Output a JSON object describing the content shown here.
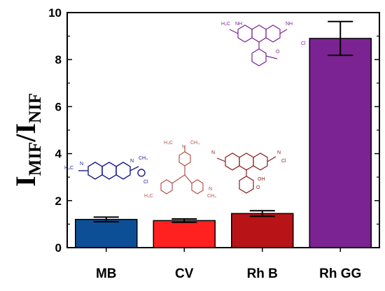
{
  "chart_data": {
    "type": "bar",
    "categories": [
      "MB",
      "CV",
      "Rh B",
      "Rh GG"
    ],
    "values": [
      1.2,
      1.15,
      1.45,
      8.9
    ],
    "errors": [
      0.1,
      0.07,
      0.12,
      0.72
    ],
    "colors": [
      "#0d4f96",
      "#ff2020",
      "#b81417",
      "#7b2393"
    ],
    "ylabel": {
      "main": "I",
      "sub1": "MIF",
      "slash": "/I",
      "sub2": "NIF"
    },
    "ylim": [
      0,
      10
    ],
    "yticks": [
      "0",
      "2",
      "4",
      "6",
      "8",
      "10"
    ],
    "molecule_colors": [
      "#1a1a8c",
      "#b3524a",
      "#8b1a1a",
      "#7b2393"
    ],
    "molecule_labels": {
      "mb": [
        "H₃C",
        "N",
        "CH₃",
        "Cl"
      ],
      "cv": [
        "H₃C",
        "N",
        "CH₃",
        "Cl"
      ],
      "rhb": [
        "N",
        "OH",
        "O",
        "Cl"
      ],
      "rhgg": [
        "H₃C",
        "NH",
        "O",
        "Cl"
      ]
    }
  }
}
